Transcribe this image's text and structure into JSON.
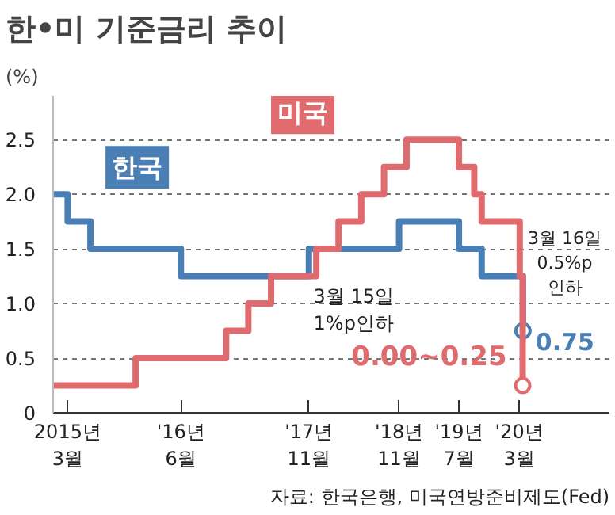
{
  "chart_data": {
    "type": "step",
    "title": "한•미 기준금리 추이",
    "ylabel": "(%)",
    "xlim": [
      "2015-01",
      "2021-03"
    ],
    "ylim": [
      0,
      2.9
    ],
    "yticks": [
      0,
      0.5,
      {
        "value": 1,
        "label": "1.0"
      },
      1.5,
      {
        "value": 2,
        "label": "2.0"
      },
      2.5
    ],
    "xticks": [
      {
        "value": "2015-03",
        "label": "2015년\n3월"
      },
      {
        "value": "2016-06",
        "label": "'16년\n6월"
      },
      {
        "value": "2017-11",
        "label": "'17년\n11월"
      },
      {
        "value": "2018-11",
        "label": "'18년\n11월"
      },
      {
        "value": "2019-07",
        "label": "'19년\n7월"
      },
      {
        "value": "2020-03",
        "label": "'20년\n3월"
      }
    ],
    "grid": "y",
    "marker": "none",
    "line_style": "solid",
    "series": [
      {
        "name": "한국",
        "color": "#4a7fb5",
        "x": [
          "2015-01",
          "2015-03",
          "2015-06",
          "2016-06",
          "2017-11",
          "2018-11",
          "2019-07",
          "2019-10",
          "2020-03-16"
        ],
        "values": [
          2.0,
          1.75,
          1.5,
          1.25,
          1.5,
          1.75,
          1.5,
          1.25,
          0.75
        ]
      },
      {
        "name": "미국",
        "color": "#e06b6e",
        "x": [
          "2015-01",
          "2015-12",
          "2016-12",
          "2017-03",
          "2017-06",
          "2017-12",
          "2018-03",
          "2018-06",
          "2018-09",
          "2018-12",
          "2019-07",
          "2019-09",
          "2019-10",
          "2020-03-03",
          "2020-03-15"
        ],
        "values": [
          0.25,
          0.5,
          0.75,
          1.0,
          1.25,
          1.5,
          1.75,
          2.0,
          2.25,
          2.5,
          2.25,
          2.0,
          1.75,
          1.25,
          0.25
        ]
      }
    ],
    "annotations": [
      "3월 15일\n1%p인하",
      "3월 16일\n0.5%p\n인하",
      {
        "text": "0.00~0.25",
        "x": "2020-03-15",
        "y": 0.25
      },
      {
        "text": "0.75",
        "x": "2020-03-16",
        "y": 0.75
      },
      "자료: 한국은행, 미국연방준비제도(Fed)"
    ]
  }
}
